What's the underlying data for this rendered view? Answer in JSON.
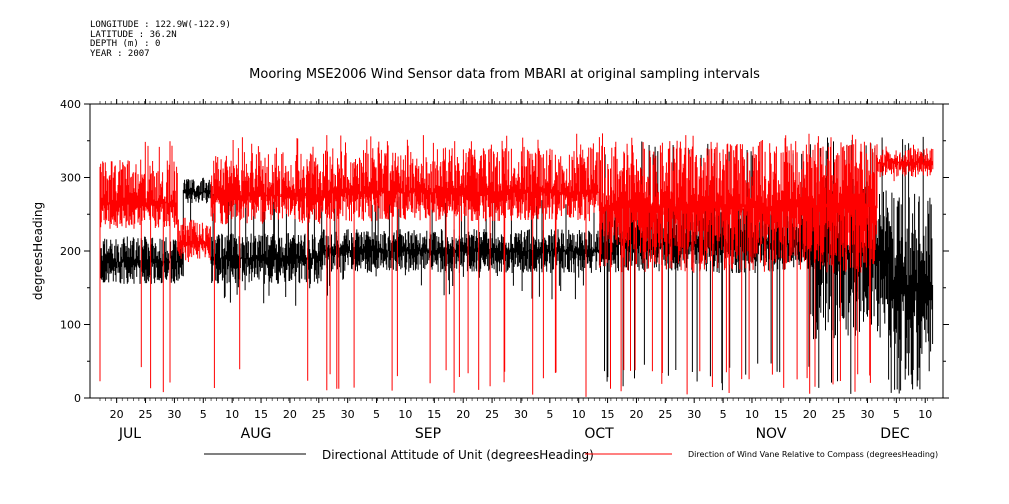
{
  "header": {
    "meta_lines": [
      "LONGITUDE : 122.9W(-122.9)",
      "LATITUDE : 36.2N",
      "DEPTH (m) : 0",
      "YEAR : 2007"
    ],
    "title": "Mooring MSE2006 Wind Sensor data from MBARI at original sampling intervals"
  },
  "chart_data": {
    "type": "line",
    "title": "Mooring MSE2006 Wind Sensor data from MBARI at original sampling intervals",
    "xlabel": "",
    "ylabel": "degreesHeading",
    "ylim": [
      0,
      400
    ],
    "yticks": [
      0,
      100,
      200,
      300,
      400
    ],
    "x_tick_labels": [
      "20",
      "25",
      "30",
      "5",
      "10",
      "15",
      "20",
      "25",
      "30",
      "5",
      "10",
      "15",
      "20",
      "25",
      "30",
      "5",
      "10",
      "15",
      "20",
      "25",
      "30",
      "5",
      "10",
      "15",
      "20",
      "25",
      "30",
      "5",
      "10"
    ],
    "month_labels": [
      "JUL",
      "AUG",
      "SEP",
      "OCT",
      "NOV",
      "DEC"
    ],
    "grid": false,
    "legend_placement": "bottom",
    "series": [
      {
        "name": "Directional Attitude of Unit (degreesHeading)",
        "color": "#000000",
        "segments": [
          {
            "start_day": 0,
            "end_day": 15,
            "base": 185,
            "lo_spread": 30,
            "hi_spread": 35,
            "spike_lo": 150,
            "spike_hi": 220
          },
          {
            "start_day": 15,
            "end_day": 20,
            "base": 280,
            "lo_spread": 15,
            "hi_spread": 20,
            "spike_lo": 210,
            "spike_hi": 300
          },
          {
            "start_day": 20,
            "end_day": 40,
            "base": 190,
            "lo_spread": 35,
            "hi_spread": 35,
            "spike_lo": 120,
            "spike_hi": 280
          },
          {
            "start_day": 40,
            "end_day": 90,
            "base": 200,
            "lo_spread": 30,
            "hi_spread": 30,
            "spike_lo": 130,
            "spike_hi": 280
          },
          {
            "start_day": 90,
            "end_day": 128,
            "base": 210,
            "lo_spread": 40,
            "hi_spread": 60,
            "spike_lo": 10,
            "spike_hi": 350
          },
          {
            "start_day": 128,
            "end_day": 142,
            "base": 200,
            "lo_spread": 120,
            "hi_spread": 100,
            "spike_lo": 5,
            "spike_hi": 355
          },
          {
            "start_day": 142,
            "end_day": 150,
            "base": 150,
            "lo_spread": 140,
            "hi_spread": 130,
            "spike_lo": 5,
            "spike_hi": 360
          }
        ]
      },
      {
        "name": "Direction of Wind Vane Relative to Compass (degreesHeading)",
        "color": "#ff0000",
        "segments": [
          {
            "start_day": 0,
            "end_day": 14,
            "base": 265,
            "lo_spread": 35,
            "hi_spread": 60,
            "spike_lo": 5,
            "spike_hi": 355
          },
          {
            "start_day": 14,
            "end_day": 20,
            "base": 210,
            "lo_spread": 25,
            "hi_spread": 35,
            "spike_lo": 170,
            "spike_hi": 260
          },
          {
            "start_day": 20,
            "end_day": 40,
            "base": 275,
            "lo_spread": 40,
            "hi_spread": 60,
            "spike_lo": 5,
            "spike_hi": 360
          },
          {
            "start_day": 40,
            "end_day": 90,
            "base": 280,
            "lo_spread": 40,
            "hi_spread": 60,
            "spike_lo": 0,
            "spike_hi": 360
          },
          {
            "start_day": 90,
            "end_day": 140,
            "base": 260,
            "lo_spread": 90,
            "hi_spread": 90,
            "spike_lo": 0,
            "spike_hi": 360
          },
          {
            "start_day": 140,
            "end_day": 150,
            "base": 320,
            "lo_spread": 20,
            "hi_spread": 20,
            "spike_lo": 290,
            "spike_hi": 345
          }
        ]
      }
    ]
  }
}
